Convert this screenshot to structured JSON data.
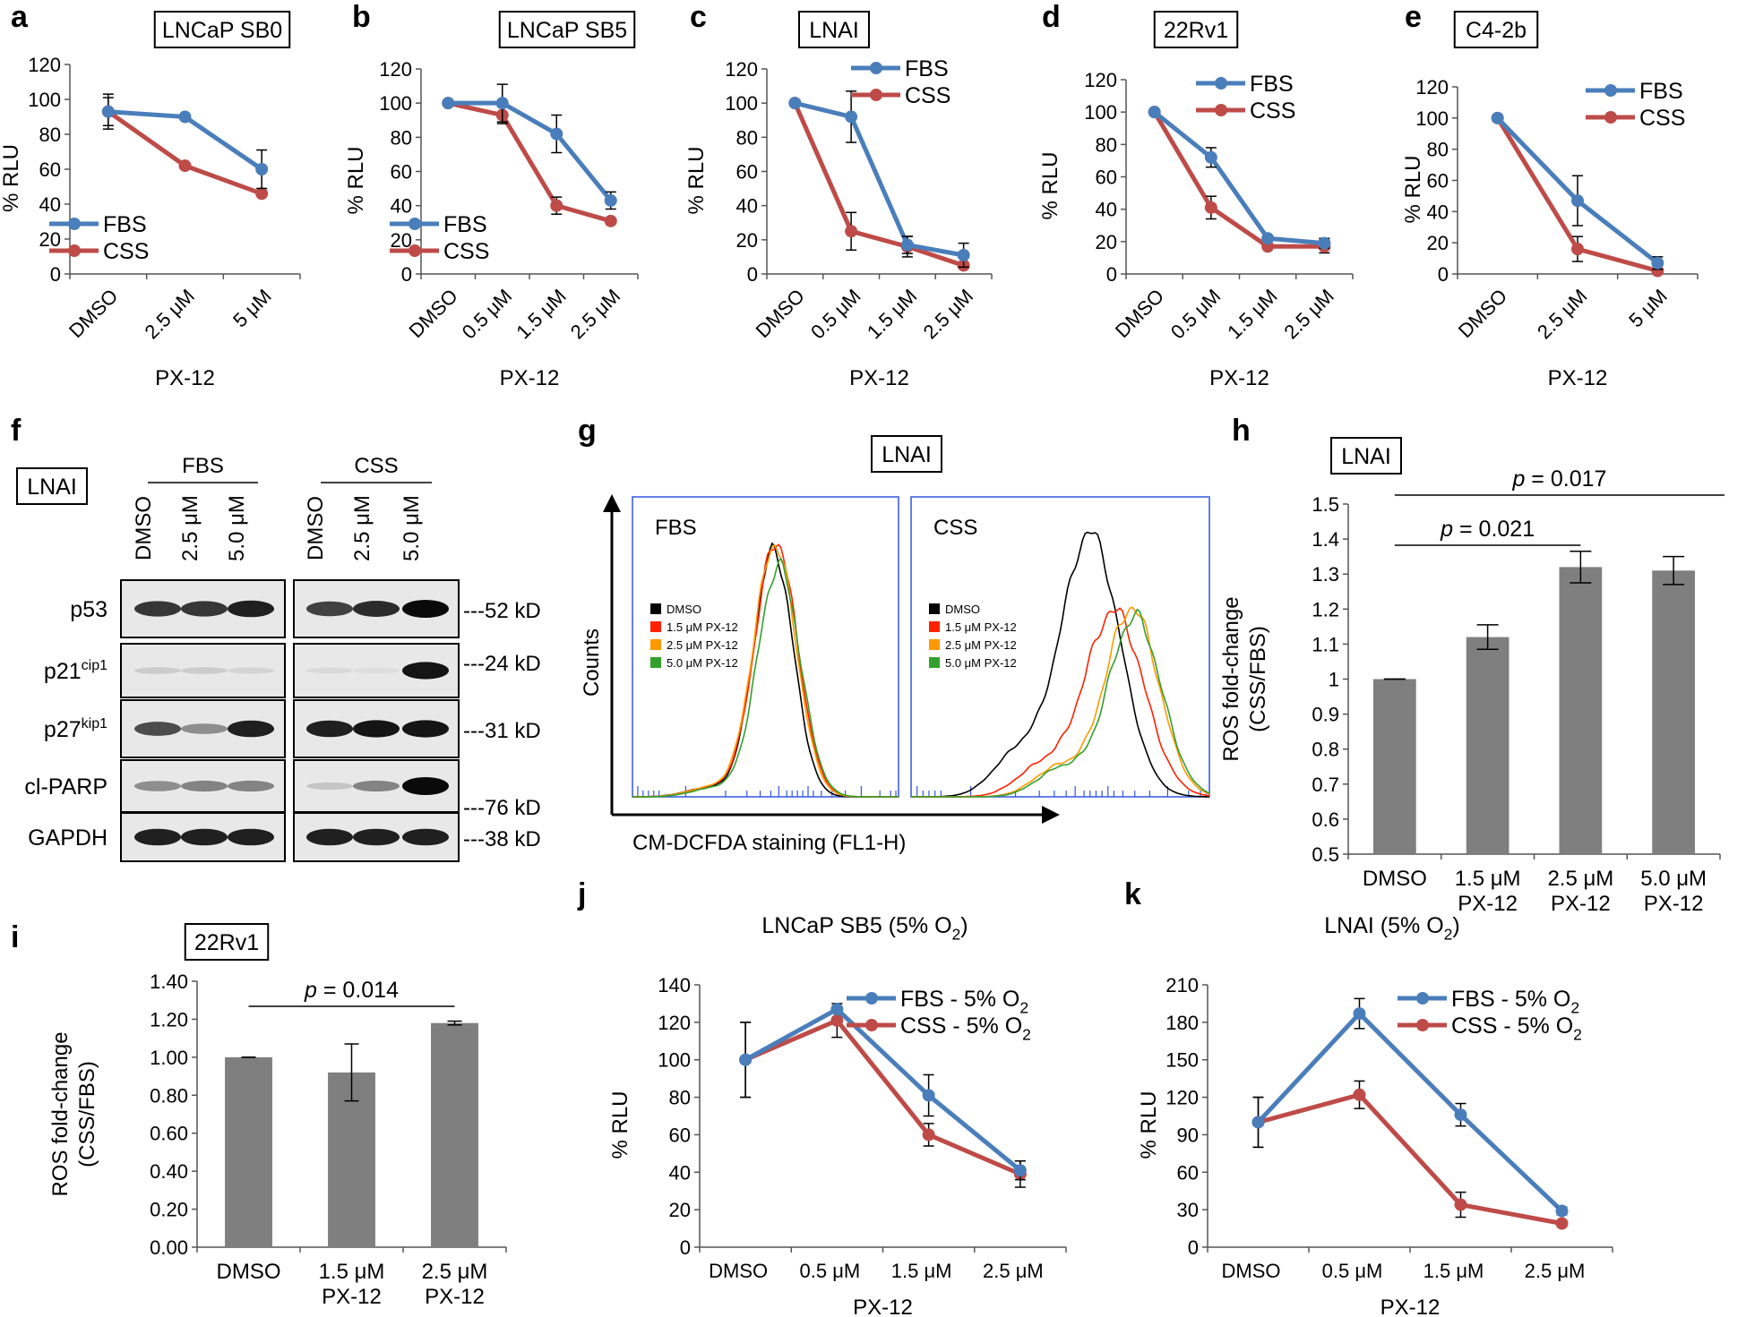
{
  "colors": {
    "fbs": "#4a7ebb",
    "css": "#be4b48",
    "bar": "#7f7f7f"
  },
  "chart_data": [
    {
      "id": "a",
      "type": "line",
      "panel_letter": "a",
      "title": "LNCaP SB0",
      "categories": [
        "DMSO",
        "2.5 μM",
        "5 μM"
      ],
      "xlabel": "PX-12",
      "ylabel": "% RLU",
      "ylim": [
        0,
        120
      ],
      "yticks": [
        "0",
        "20",
        "40",
        "60",
        "80",
        "100",
        "120"
      ],
      "series": [
        {
          "name": "FBS",
          "values": [
            93,
            90,
            60
          ],
          "errors": [
            10,
            0,
            11
          ]
        },
        {
          "name": "CSS",
          "values": [
            93,
            62,
            46
          ],
          "errors": [
            8,
            0,
            0
          ]
        }
      ],
      "legend": "bottom-left"
    },
    {
      "id": "b",
      "type": "line",
      "panel_letter": "b",
      "title": "LNCaP SB5",
      "categories": [
        "DMSO",
        "0.5 μM",
        "1.5 μM",
        "2.5 μM"
      ],
      "xlabel": "PX-12",
      "ylabel": "% RLU",
      "ylim": [
        0,
        120
      ],
      "yticks": [
        "0",
        "20",
        "40",
        "60",
        "80",
        "100",
        "120"
      ],
      "series": [
        {
          "name": "FBS",
          "values": [
            100,
            100,
            82,
            43
          ],
          "errors": [
            0,
            11,
            11,
            5
          ]
        },
        {
          "name": "CSS",
          "values": [
            100,
            93,
            40,
            31
          ],
          "errors": [
            0,
            5,
            5,
            0
          ]
        }
      ],
      "legend": "bottom-left"
    },
    {
      "id": "c",
      "type": "line",
      "panel_letter": "c",
      "title": "LNAI",
      "categories": [
        "DMSO",
        "0.5 μM",
        "1.5 μM",
        "2.5 μM"
      ],
      "xlabel": "PX-12",
      "ylabel": "% RLU",
      "ylim": [
        0,
        120
      ],
      "yticks": [
        "0",
        "20",
        "40",
        "60",
        "80",
        "100",
        "120"
      ],
      "series": [
        {
          "name": "FBS",
          "values": [
            100,
            92,
            17,
            11
          ],
          "errors": [
            0,
            15,
            5,
            7
          ]
        },
        {
          "name": "CSS",
          "values": [
            100,
            25,
            16,
            5
          ],
          "errors": [
            0,
            11,
            6,
            0
          ]
        }
      ],
      "legend": "top-right"
    },
    {
      "id": "d",
      "type": "line",
      "panel_letter": "d",
      "title": "22Rv1",
      "categories": [
        "DMSO",
        "0.5 μM",
        "1.5 μM",
        "2.5 μM"
      ],
      "xlabel": "PX-12",
      "ylabel": "% RLU",
      "ylim": [
        0,
        120
      ],
      "yticks": [
        "0",
        "20",
        "40",
        "60",
        "80",
        "100",
        "120"
      ],
      "series": [
        {
          "name": "FBS",
          "values": [
            100,
            72,
            22,
            19
          ],
          "errors": [
            0,
            6,
            0,
            3
          ]
        },
        {
          "name": "CSS",
          "values": [
            100,
            41,
            17,
            17
          ],
          "errors": [
            0,
            7,
            0,
            4
          ]
        }
      ],
      "legend": "top-right"
    },
    {
      "id": "e",
      "type": "line",
      "panel_letter": "e",
      "title": "C4-2b",
      "categories": [
        "DMSO",
        "2.5 μM",
        "5 μM"
      ],
      "xlabel": "PX-12",
      "ylabel": "% RLU",
      "ylim": [
        0,
        120
      ],
      "yticks": [
        "0",
        "20",
        "40",
        "60",
        "80",
        "100",
        "120"
      ],
      "series": [
        {
          "name": "FBS",
          "values": [
            100,
            47,
            7
          ],
          "errors": [
            0,
            16,
            4
          ]
        },
        {
          "name": "CSS",
          "values": [
            100,
            16,
            2
          ],
          "errors": [
            0,
            8,
            0
          ]
        }
      ],
      "legend": "top-right"
    },
    {
      "id": "h",
      "type": "bar",
      "panel_letter": "h",
      "title": "LNAI",
      "categories": [
        "DMSO",
        "1.5 μM PX-12",
        "2.5 μM PX-12",
        "5.0 μM PX-12"
      ],
      "category_lines": [
        [
          "DMSO"
        ],
        [
          "1.5 μM",
          "PX-12"
        ],
        [
          "2.5 μM",
          "PX-12"
        ],
        [
          "5.0 μM",
          "PX-12"
        ]
      ],
      "values": [
        1.0,
        1.12,
        1.32,
        1.31
      ],
      "errors": [
        0.0,
        0.035,
        0.045,
        0.04
      ],
      "ylabel": [
        "ROS fold-change",
        "(CSS/FBS)"
      ],
      "ylim": [
        0.5,
        1.5
      ],
      "yticks": [
        "0.5",
        "0.6",
        "0.7",
        "0.8",
        "0.9",
        "1",
        "1.1",
        "1.2",
        "1.3",
        "1.4",
        "1.5"
      ],
      "annotations": [
        {
          "text": "p = 0.021",
          "p_label": "p",
          "p_value": " = 0.021",
          "from": 0,
          "to": 2
        },
        {
          "text": "p = 0.017",
          "p_label": "p",
          "p_value": " = 0.017",
          "from": 0,
          "to": 3
        }
      ]
    },
    {
      "id": "i",
      "type": "bar",
      "panel_letter": "i",
      "title": "22Rv1",
      "categories": [
        "DMSO",
        "1.5 μM PX-12",
        "2.5 μM PX-12"
      ],
      "category_lines": [
        [
          "DMSO"
        ],
        [
          "1.5 μM",
          "PX-12"
        ],
        [
          "2.5 μM",
          "PX-12"
        ]
      ],
      "values": [
        1.0,
        0.92,
        1.18
      ],
      "errors": [
        0.0,
        0.15,
        0.01
      ],
      "ylabel": [
        "ROS fold-change",
        "(CSS/FBS)"
      ],
      "ylim": [
        0,
        1.4
      ],
      "yticks": [
        "0.00",
        "0.20",
        "0.40",
        "0.60",
        "0.80",
        "1.00",
        "1.20",
        "1.40"
      ],
      "annotations": [
        {
          "text": "p = 0.014",
          "p_label": "p",
          "p_value": " = 0.014",
          "from": 0,
          "to": 2
        }
      ]
    },
    {
      "id": "j",
      "type": "line",
      "panel_letter": "j",
      "title": "LNCaP SB5 (5% O2)",
      "title_main": "LNCaP SB5 (5% O",
      "title_sub": "2",
      "title_end": ")",
      "categories": [
        "DMSO",
        "0.5 μM",
        "1.5 μM",
        "2.5 μM"
      ],
      "xlabel": "PX-12",
      "ylabel": "% RLU",
      "ylim": [
        0,
        140
      ],
      "yticks": [
        "0",
        "20",
        "40",
        "60",
        "80",
        "100",
        "120",
        "140"
      ],
      "series": [
        {
          "name": "FBS - 5% O2",
          "name_main": "FBS - 5% O",
          "name_sub": "2",
          "values": [
            100,
            127,
            81,
            41
          ],
          "errors": [
            20,
            0,
            11,
            5
          ]
        },
        {
          "name": "CSS - 5% O2",
          "name_main": "CSS - 5% O",
          "name_sub": "2",
          "values": [
            100,
            121,
            60,
            39
          ],
          "errors": [
            20,
            9,
            6,
            7
          ]
        }
      ],
      "legend": "top-right"
    },
    {
      "id": "k",
      "type": "line",
      "panel_letter": "k",
      "title": "LNAI (5% O2)",
      "title_main": "LNAI (5% O",
      "title_sub": "2",
      "title_end": ")",
      "categories": [
        "DMSO",
        "0.5 μM",
        "1.5 μM",
        "2.5 μM"
      ],
      "xlabel": "PX-12",
      "ylabel": "% RLU",
      "ylim": [
        0,
        210
      ],
      "yticks": [
        "0",
        "30",
        "60",
        "90",
        "120",
        "150",
        "180",
        "210"
      ],
      "series": [
        {
          "name": "FBS - 5% O2",
          "name_main": "FBS - 5% O",
          "name_sub": "2",
          "values": [
            100,
            187,
            106,
            29
          ],
          "errors": [
            20,
            12,
            9,
            3
          ]
        },
        {
          "name": "CSS - 5% O2",
          "name_main": "CSS - 5% O",
          "name_sub": "2",
          "values": [
            100,
            122,
            34,
            19
          ],
          "errors": [
            20,
            11,
            10,
            0
          ]
        }
      ],
      "legend": "top-right"
    }
  ],
  "western_blot": {
    "panel_letter": "f",
    "cell_line": "LNAI",
    "groups": [
      "FBS",
      "CSS"
    ],
    "lanes": [
      "DMSO",
      "2.5 μM",
      "5.0 μM"
    ],
    "rows": [
      {
        "name": "p53",
        "sup": "",
        "kd": "---52 kD"
      },
      {
        "name": "p21",
        "sup": "cip1",
        "kd": "---24 kD"
      },
      {
        "name": "p27",
        "sup": "kip1",
        "kd": "---31 kD"
      },
      {
        "name": "cl-PARP",
        "sup": "",
        "kd": "---76 kD"
      },
      {
        "name": "GAPDH",
        "sup": "",
        "kd": "---38 kD"
      }
    ],
    "intensities": [
      [
        [
          0.8,
          0.8,
          0.9
        ],
        [
          0.75,
          0.85,
          1.0
        ]
      ],
      [
        [
          0.12,
          0.12,
          0.08
        ],
        [
          0.06,
          0.04,
          0.95
        ]
      ],
      [
        [
          0.7,
          0.4,
          0.9
        ],
        [
          0.9,
          0.95,
          0.95
        ]
      ],
      [
        [
          0.4,
          0.45,
          0.45
        ],
        [
          0.15,
          0.45,
          1.0
        ]
      ],
      [
        [
          0.9,
          0.9,
          0.9
        ],
        [
          0.9,
          0.9,
          0.9
        ]
      ]
    ]
  },
  "flow": {
    "panel_letter": "g",
    "cell_line": "LNAI",
    "ylabel": "Counts",
    "xlabel": "CM-DCFDA staining (FL1-H)",
    "subpanels": [
      {
        "label": "FBS",
        "peaks": [
          0.53,
          0.54,
          0.535,
          0.55
        ],
        "heights": [
          0.82,
          0.85,
          0.84,
          0.77
        ],
        "widths": [
          0.075,
          0.08,
          0.08,
          0.08
        ]
      },
      {
        "label": "CSS",
        "peaks": [
          0.6,
          0.68,
          0.74,
          0.75
        ],
        "heights": [
          0.88,
          0.62,
          0.63,
          0.6
        ],
        "widths": [
          0.1,
          0.1,
          0.09,
          0.09
        ]
      }
    ],
    "legend": [
      {
        "label": "DMSO",
        "color": "#000000"
      },
      {
        "label": "1.5 μM PX-12",
        "color": "#ff2200"
      },
      {
        "label": "2.5 μM PX-12",
        "color": "#ff9900"
      },
      {
        "label": "5.0 μM PX-12",
        "color": "#33a02c"
      }
    ]
  }
}
